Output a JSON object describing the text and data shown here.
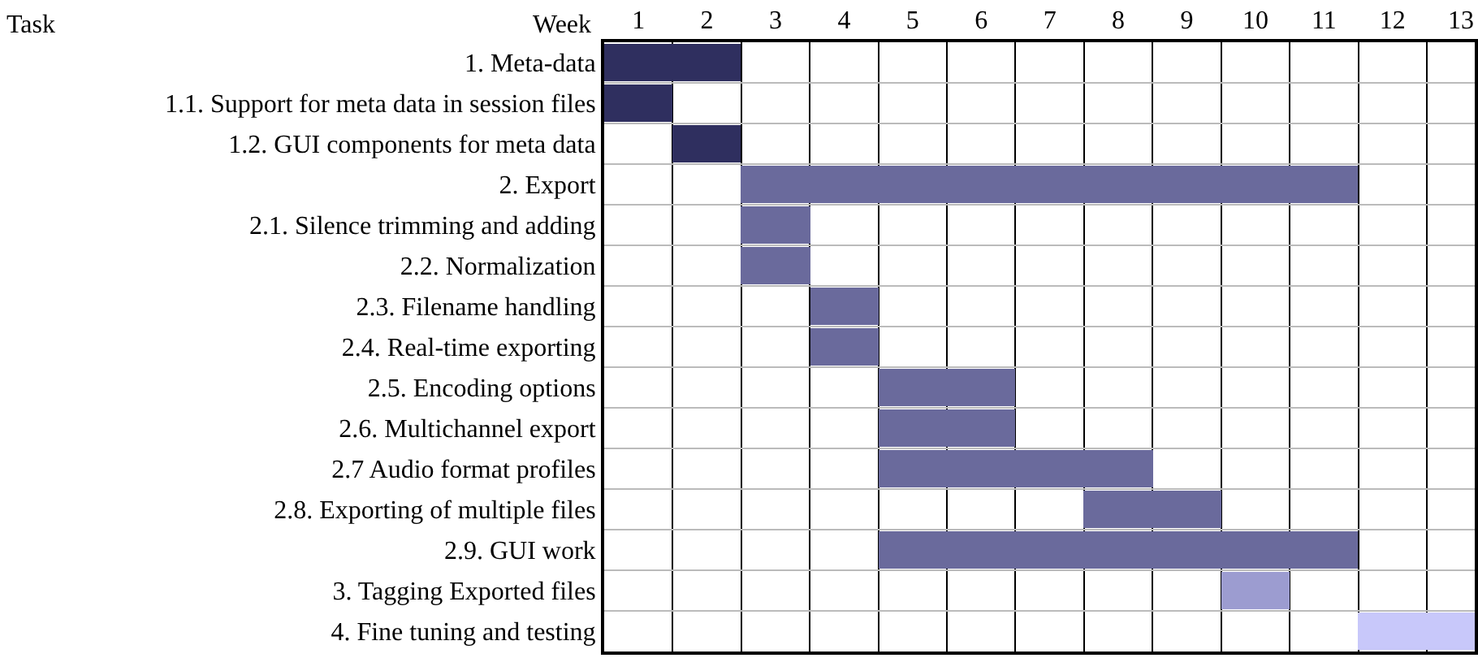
{
  "chart_data": {
    "type": "bar",
    "orientation": "horizontal",
    "xlabel": "Week",
    "ylabel": "Task",
    "categories": [
      "1. Meta-data",
      "1.1. Support for meta data in session files",
      "1.2. GUI components for meta data",
      "2. Export",
      "2.1. Silence trimming and adding",
      "2.2. Normalization",
      "2.3. Filename handling",
      "2.4. Real-time exporting",
      "2.5. Encoding options",
      "2.6. Multichannel export",
      "2.7 Audio format profiles",
      "2.8. Exporting of multiple files",
      "2.9. GUI work",
      "3. Tagging Exported files",
      "4. Fine tuning and testing"
    ],
    "base": [
      0,
      0,
      1,
      2,
      2,
      2,
      3,
      3,
      4,
      4,
      4,
      7,
      4,
      9,
      11
    ],
    "values": [
      2,
      1,
      1,
      9,
      1,
      1,
      1,
      1,
      2,
      2,
      4,
      2,
      7,
      1,
      1.7
    ],
    "colors": [
      "#2f2f5f",
      "#2f2f5f",
      "#2f2f5f",
      "#6a6a9c",
      "#6a6a9c",
      "#6a6a9c",
      "#6a6a9c",
      "#6a6a9c",
      "#6a6a9c",
      "#6a6a9c",
      "#6a6a9c",
      "#6a6a9c",
      "#6a6a9c",
      "#9c9cd0",
      "#c8c8fa"
    ],
    "xlim": [
      0,
      12.7
    ],
    "xticks": [
      {
        "value": 0.5,
        "label": "1"
      },
      {
        "value": 1.5,
        "label": "2"
      },
      {
        "value": 2.5,
        "label": "3"
      },
      {
        "value": 3.5,
        "label": "4"
      },
      {
        "value": 4.5,
        "label": "5"
      },
      {
        "value": 5.5,
        "label": "6"
      },
      {
        "value": 6.5,
        "label": "7"
      },
      {
        "value": 7.5,
        "label": "8"
      },
      {
        "value": 8.5,
        "label": "9"
      },
      {
        "value": 9.5,
        "label": "10"
      },
      {
        "value": 10.5,
        "label": "11"
      },
      {
        "value": 11.5,
        "label": "12"
      },
      {
        "value": 12.5,
        "label": "13"
      }
    ],
    "grid": true,
    "legend": false
  }
}
